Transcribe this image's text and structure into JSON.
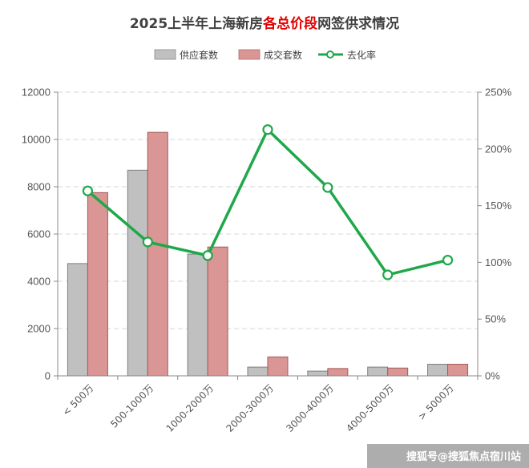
{
  "chart_data": {
    "type": "bar",
    "title_parts": [
      "2025上半年上海新房",
      "各总价段",
      "网签供求情况"
    ],
    "title_highlight_color": "#e00000",
    "categories": [
      "< 500万",
      "500-1000万",
      "1000-2000万",
      "2000-3000万",
      "3000-4000万",
      "4000-5000万",
      "> 5000万"
    ],
    "series": [
      {
        "name": "供应套数",
        "type": "bar",
        "axis": "left",
        "color": "#c0c0c0",
        "values": [
          4750,
          8700,
          5150,
          370,
          200,
          370,
          490
        ]
      },
      {
        "name": "成交套数",
        "type": "bar",
        "axis": "left",
        "color": "#d99694",
        "values": [
          7750,
          10300,
          5450,
          800,
          310,
          330,
          490
        ]
      },
      {
        "name": "去化率",
        "type": "line",
        "axis": "right",
        "color": "#1fa84a",
        "values": [
          163,
          118,
          106,
          217,
          166,
          89,
          102
        ]
      }
    ],
    "y_left": {
      "min": 0,
      "max": 12000,
      "ticks": [
        0,
        2000,
        4000,
        6000,
        8000,
        10000,
        12000
      ]
    },
    "y_right": {
      "min": 0,
      "max": 250,
      "ticks": [
        "0%",
        "50%",
        "100%",
        "150%",
        "200%",
        "250%"
      ]
    },
    "grid": true,
    "legend_position": "top-center"
  },
  "watermark": "搜狐号@搜狐焦点宿川站"
}
